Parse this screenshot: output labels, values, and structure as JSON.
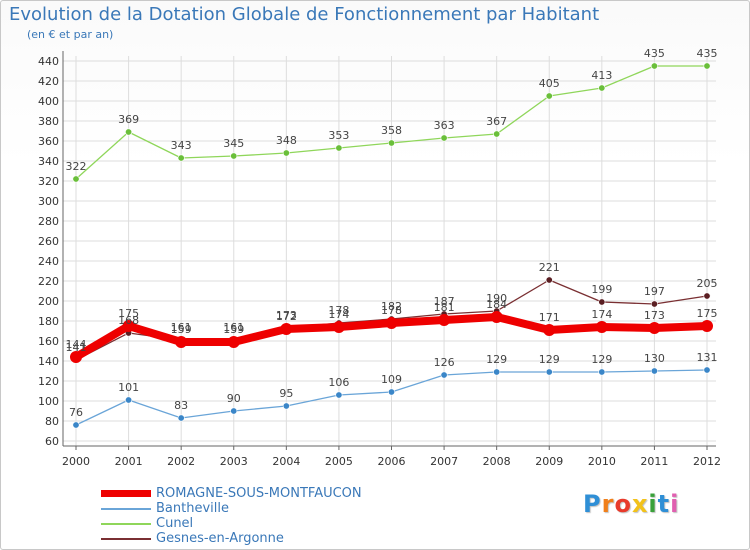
{
  "title": "Evolution de la Dotation Globale de Fonctionnement par Habitant",
  "subtitle": "(en € et par an)",
  "brand": {
    "letters": [
      "P",
      "r",
      "o",
      "x",
      "i",
      "t",
      "i"
    ],
    "colors": [
      "#2f8fd6",
      "#f07f1a",
      "#e83a2b",
      "#f2c21a",
      "#3aa13a",
      "#2f8fd6",
      "#e05fb0"
    ]
  },
  "colors": {
    "text": "#3a78b8",
    "grid": "#dddddd",
    "axis": "#666666",
    "tick_text": "#333333",
    "value_text": "#444444"
  },
  "chart_data": {
    "type": "line",
    "x": [
      "2000",
      "2001",
      "2002",
      "2003",
      "2004",
      "2005",
      "2006",
      "2007",
      "2008",
      "2009",
      "2010",
      "2011",
      "2012"
    ],
    "ylim": [
      60,
      440
    ],
    "yticks": [
      60,
      80,
      100,
      120,
      140,
      160,
      180,
      200,
      220,
      240,
      260,
      280,
      300,
      320,
      340,
      360,
      380,
      400,
      420,
      440
    ],
    "grid": true,
    "legend_position": "bottom-left",
    "series": [
      {
        "name": "Cunel",
        "color": "#8fd65a",
        "marker": "#6abf3a",
        "values": [
          322,
          369,
          343,
          345,
          348,
          353,
          358,
          363,
          367,
          405,
          413,
          435,
          435
        ]
      },
      {
        "name": "Bantheville",
        "color": "#6aa5d8",
        "marker": "#3a86c8",
        "values": [
          76,
          101,
          83,
          90,
          95,
          106,
          109,
          126,
          129,
          129,
          129,
          130,
          131
        ]
      },
      {
        "name": "Gesnes-en-Argonne",
        "color": "#7a2f32",
        "marker": "#5a1e22",
        "values": [
          141,
          168,
          161,
          161,
          173,
          178,
          182,
          187,
          190,
          221,
          199,
          197,
          205
        ]
      },
      {
        "name": "ROMAGNE-SOUS-MONTFAUCON",
        "color": "#ee0000",
        "marker": "#ee0000",
        "values": [
          144,
          175,
          159,
          159,
          172,
          174,
          178,
          181,
          184,
          171,
          174,
          173,
          175
        ]
      }
    ]
  }
}
